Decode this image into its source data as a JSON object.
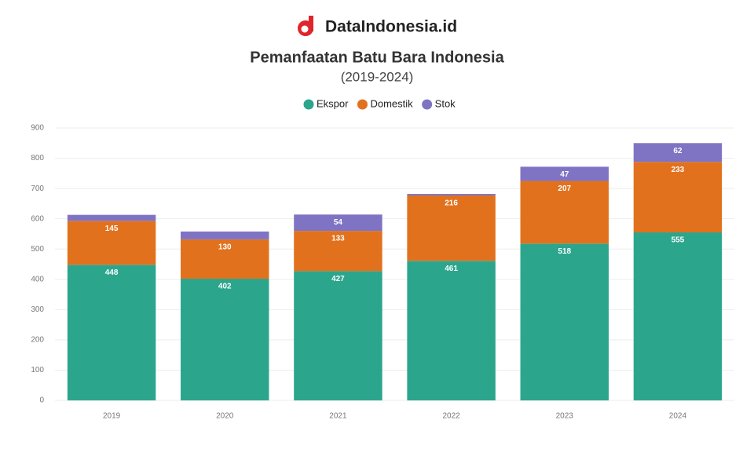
{
  "brand": "DataIndonesia.id",
  "chart_data": {
    "type": "stacked-bar",
    "title": "Pemanfaatan Batu Bara Indonesia",
    "subtitle": "(2019-2024)",
    "categories": [
      "2019",
      "2020",
      "2021",
      "2022",
      "2023",
      "2024"
    ],
    "series": [
      {
        "name": "Ekspor",
        "color": "#2ca58d",
        "values": [
          448,
          402,
          427,
          461,
          518,
          555
        ]
      },
      {
        "name": "Domestik",
        "color": "#e2711d",
        "values": [
          145,
          130,
          133,
          216,
          207,
          233
        ]
      },
      {
        "name": "Stok",
        "color": "#7f74c4",
        "values": [
          20,
          26,
          54,
          5,
          47,
          62
        ]
      }
    ],
    "ylim": [
      0,
      900
    ],
    "yticks": [
      0,
      100,
      200,
      300,
      400,
      500,
      600,
      700,
      800,
      900
    ],
    "grid": true
  }
}
